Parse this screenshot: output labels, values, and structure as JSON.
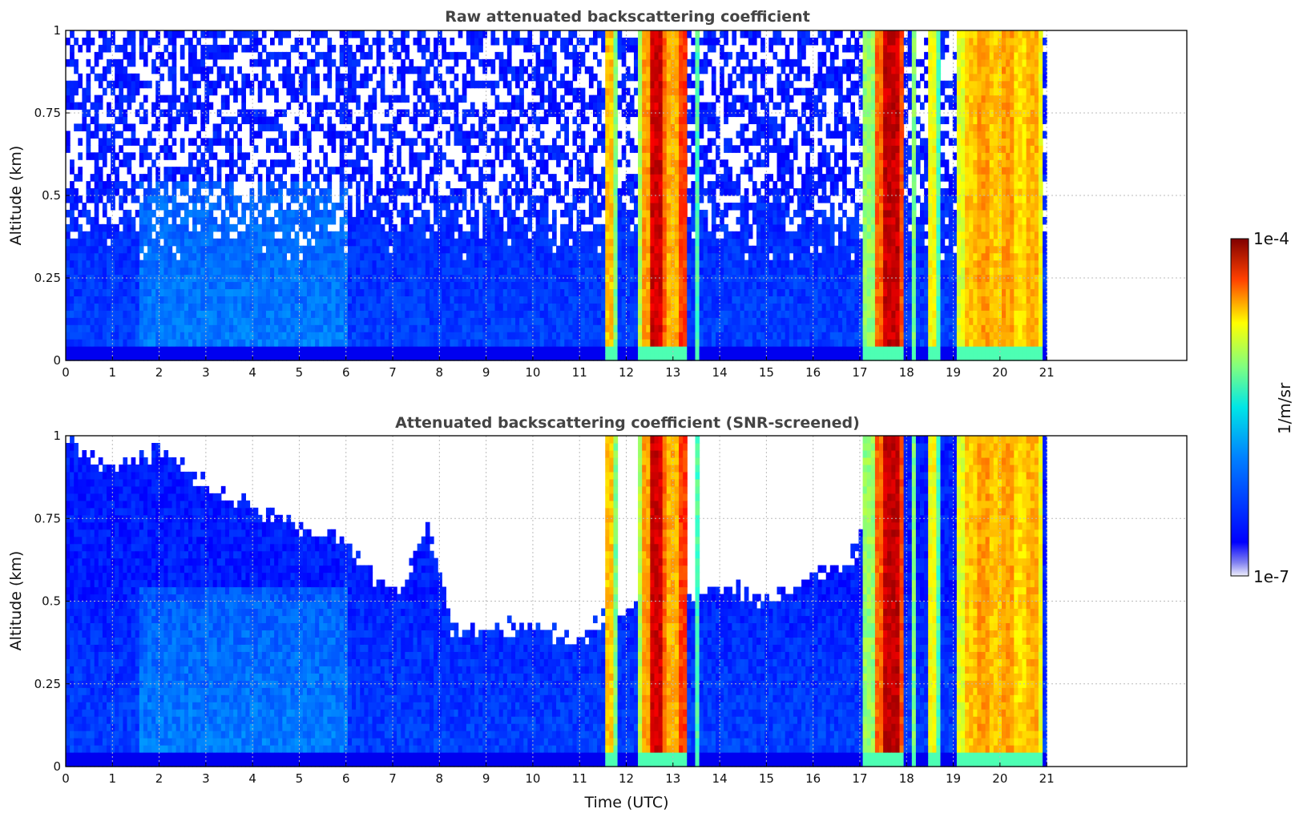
{
  "chart_data": [
    {
      "type": "heatmap",
      "title": "Raw attenuated backscattering coefficient",
      "xlabel": "",
      "ylabel": "Altitude (km)",
      "xlim": [
        0,
        24
      ],
      "ylim": [
        0,
        1
      ],
      "x_ticks": [
        "0",
        "1",
        "2",
        "3",
        "4",
        "5",
        "6",
        "7",
        "8",
        "9",
        "10",
        "11",
        "12",
        "13",
        "14",
        "15",
        "16",
        "17",
        "18",
        "19",
        "20",
        "21"
      ],
      "y_ticks": [
        "0",
        "0.25",
        "0.5",
        "0.75",
        "1"
      ],
      "data_end_hour": 21,
      "grid": true,
      "screened": false
    },
    {
      "type": "heatmap",
      "title": "Attenuated backscattering coefficient (SNR-screened)",
      "xlabel": "Time (UTC)",
      "ylabel": "Altitude (km)",
      "xlim": [
        0,
        24
      ],
      "ylim": [
        0,
        1
      ],
      "x_ticks": [
        "0",
        "1",
        "2",
        "3",
        "4",
        "5",
        "6",
        "7",
        "8",
        "9",
        "10",
        "11",
        "12",
        "13",
        "14",
        "15",
        "16",
        "17",
        "18",
        "19",
        "20",
        "21"
      ],
      "y_ticks": [
        "0",
        "0.25",
        "0.5",
        "0.75",
        "1"
      ],
      "data_end_hour": 21,
      "grid": true,
      "screened": true
    }
  ],
  "colorbar": {
    "label": "1/m/sr",
    "max_label": "1e-4",
    "min_label": "1e-7",
    "scale": "log",
    "colormap": "jet"
  },
  "colors": {
    "background": "#ffffff",
    "title": "#444444",
    "grid": "#bbbbbb"
  }
}
